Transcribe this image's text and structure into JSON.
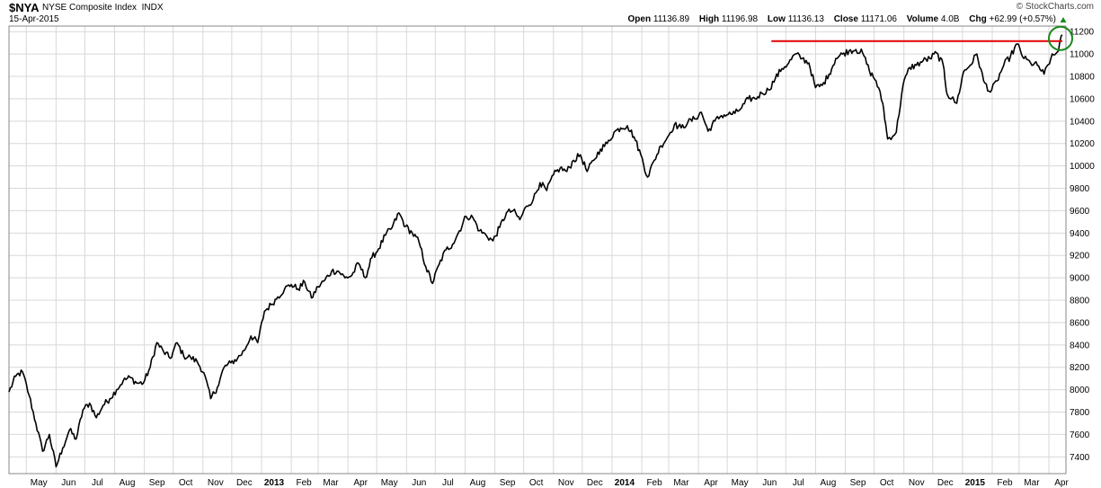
{
  "header": {
    "symbol": "$NYA",
    "description": "NYSE Composite Index",
    "exchange": "INDX",
    "date": "15-Apr-2015",
    "brand": "© StockCharts.com",
    "open_label": "Open",
    "open": "11136.89",
    "high_label": "High",
    "high": "11196.98",
    "low_label": "Low",
    "low": "11136.13",
    "close_label": "Close",
    "close": "11171.06",
    "volume_label": "Volume",
    "volume": "4.0B",
    "chg_label": "Chg",
    "chg": "+62.99 (+0.57%)"
  },
  "colors": {
    "price_line": "#000000",
    "resistance_line": "#e00000",
    "highlight_circle": "#1a8a1a",
    "up_arrow": "#1a8a1a",
    "grid": "#d8d8d8"
  },
  "chart_data": {
    "type": "line",
    "title": "$NYA NYSE Composite Index INDX",
    "xlabel": "",
    "ylabel": "",
    "ylim": [
      7250,
      11250
    ],
    "y_axis_side": "right",
    "grid": true,
    "y_ticks": [
      7400,
      7600,
      7800,
      8000,
      8200,
      8400,
      8600,
      8800,
      9000,
      9200,
      9400,
      9600,
      9800,
      10000,
      10200,
      10400,
      10600,
      10800,
      11000,
      11200
    ],
    "x_ticks": [
      {
        "label": "May",
        "date": "2012-05-01"
      },
      {
        "label": "Jun",
        "date": "2012-06-01"
      },
      {
        "label": "Jul",
        "date": "2012-07-01"
      },
      {
        "label": "Aug",
        "date": "2012-08-01"
      },
      {
        "label": "Sep",
        "date": "2012-09-01"
      },
      {
        "label": "Oct",
        "date": "2012-10-01"
      },
      {
        "label": "Nov",
        "date": "2012-11-01"
      },
      {
        "label": "Dec",
        "date": "2012-12-01"
      },
      {
        "label": "2013",
        "date": "2013-01-01",
        "bold": true
      },
      {
        "label": "Feb",
        "date": "2013-02-01"
      },
      {
        "label": "Mar",
        "date": "2013-03-01"
      },
      {
        "label": "Apr",
        "date": "2013-04-01"
      },
      {
        "label": "May",
        "date": "2013-05-01"
      },
      {
        "label": "Jun",
        "date": "2013-06-01"
      },
      {
        "label": "Jul",
        "date": "2013-07-01"
      },
      {
        "label": "Aug",
        "date": "2013-08-01"
      },
      {
        "label": "Sep",
        "date": "2013-09-01"
      },
      {
        "label": "Oct",
        "date": "2013-10-01"
      },
      {
        "label": "Nov",
        "date": "2013-11-01"
      },
      {
        "label": "Dec",
        "date": "2013-12-01"
      },
      {
        "label": "2014",
        "date": "2014-01-01",
        "bold": true
      },
      {
        "label": "Feb",
        "date": "2014-02-01"
      },
      {
        "label": "Mar",
        "date": "2014-03-01"
      },
      {
        "label": "Apr",
        "date": "2014-04-01"
      },
      {
        "label": "May",
        "date": "2014-05-01"
      },
      {
        "label": "Jun",
        "date": "2014-06-01"
      },
      {
        "label": "Jul",
        "date": "2014-07-01"
      },
      {
        "label": "Aug",
        "date": "2014-08-01"
      },
      {
        "label": "Sep",
        "date": "2014-09-01"
      },
      {
        "label": "Oct",
        "date": "2014-10-01"
      },
      {
        "label": "Nov",
        "date": "2014-11-01"
      },
      {
        "label": "Dec",
        "date": "2014-12-01"
      },
      {
        "label": "2015",
        "date": "2015-01-01",
        "bold": true
      },
      {
        "label": "Feb",
        "date": "2015-02-01"
      },
      {
        "label": "Mar",
        "date": "2015-03-01"
      },
      {
        "label": "Apr",
        "date": "2015-04-01"
      }
    ],
    "series": [
      {
        "x": [
          "2012-04-13",
          "2012-04-20",
          "2012-04-27",
          "2012-05-04",
          "2012-05-11",
          "2012-05-18",
          "2012-05-25",
          "2012-06-01",
          "2012-06-08",
          "2012-06-15",
          "2012-06-22",
          "2012-06-29",
          "2012-07-06",
          "2012-07-13",
          "2012-07-20",
          "2012-07-27",
          "2012-08-03",
          "2012-08-10",
          "2012-08-17",
          "2012-08-24",
          "2012-08-31",
          "2012-09-07",
          "2012-09-14",
          "2012-09-21",
          "2012-09-28",
          "2012-10-05",
          "2012-10-12",
          "2012-10-19",
          "2012-10-26",
          "2012-11-02",
          "2012-11-09",
          "2012-11-16",
          "2012-11-23",
          "2012-11-30",
          "2012-12-07",
          "2012-12-14",
          "2012-12-21",
          "2012-12-28",
          "2013-01-04",
          "2013-01-11",
          "2013-01-18",
          "2013-01-25",
          "2013-02-01",
          "2013-02-08",
          "2013-02-15",
          "2013-02-22",
          "2013-03-01",
          "2013-03-08",
          "2013-03-15",
          "2013-03-22",
          "2013-03-29",
          "2013-04-05",
          "2013-04-12",
          "2013-04-19",
          "2013-04-26",
          "2013-05-03",
          "2013-05-10",
          "2013-05-17",
          "2013-05-24",
          "2013-05-31",
          "2013-06-07",
          "2013-06-14",
          "2013-06-21",
          "2013-06-28",
          "2013-07-05",
          "2013-07-12",
          "2013-07-19",
          "2013-07-26",
          "2013-08-02",
          "2013-08-09",
          "2013-08-16",
          "2013-08-23",
          "2013-08-30",
          "2013-09-06",
          "2013-09-13",
          "2013-09-20",
          "2013-09-27",
          "2013-10-04",
          "2013-10-11",
          "2013-10-18",
          "2013-10-25",
          "2013-11-01",
          "2013-11-08",
          "2013-11-15",
          "2013-11-22",
          "2013-11-29",
          "2013-12-06",
          "2013-12-13",
          "2013-12-20",
          "2013-12-27",
          "2014-01-03",
          "2014-01-10",
          "2014-01-17",
          "2014-01-24",
          "2014-01-31",
          "2014-02-07",
          "2014-02-14",
          "2014-02-21",
          "2014-02-28",
          "2014-03-07",
          "2014-03-14",
          "2014-03-21",
          "2014-03-28",
          "2014-04-04",
          "2014-04-11",
          "2014-04-18",
          "2014-04-25",
          "2014-05-02",
          "2014-05-09",
          "2014-05-16",
          "2014-05-23",
          "2014-05-30",
          "2014-06-06",
          "2014-06-13",
          "2014-06-20",
          "2014-06-27",
          "2014-07-04",
          "2014-07-11",
          "2014-07-18",
          "2014-07-25",
          "2014-08-01",
          "2014-08-08",
          "2014-08-15",
          "2014-08-22",
          "2014-08-29",
          "2014-09-05",
          "2014-09-12",
          "2014-09-19",
          "2014-09-26",
          "2014-10-03",
          "2014-10-10",
          "2014-10-15",
          "2014-10-24",
          "2014-10-31",
          "2014-11-07",
          "2014-11-14",
          "2014-11-21",
          "2014-11-28",
          "2014-12-05",
          "2014-12-12",
          "2014-12-16",
          "2014-12-26",
          "2015-01-02",
          "2015-01-09",
          "2015-01-16",
          "2015-01-23",
          "2015-01-30",
          "2015-02-06",
          "2015-02-13",
          "2015-02-20",
          "2015-02-27",
          "2015-03-06",
          "2015-03-13",
          "2015-03-20",
          "2015-03-27",
          "2015-04-03",
          "2015-04-10",
          "2015-04-15"
        ],
        "values": [
          7980,
          8120,
          8160,
          7950,
          7700,
          7450,
          7600,
          7310,
          7480,
          7640,
          7560,
          7820,
          7880,
          7750,
          7860,
          7920,
          8000,
          8080,
          8110,
          8060,
          8060,
          8200,
          8420,
          8340,
          8280,
          8420,
          8300,
          8290,
          8250,
          8150,
          7920,
          8020,
          8200,
          8240,
          8280,
          8350,
          8480,
          8420,
          8700,
          8760,
          8830,
          8900,
          8940,
          8900,
          8960,
          8820,
          8920,
          8980,
          9060,
          9060,
          9000,
          9020,
          9130,
          9000,
          9180,
          9260,
          9380,
          9450,
          9580,
          9460,
          9400,
          9320,
          9100,
          8950,
          9120,
          9250,
          9300,
          9420,
          9550,
          9540,
          9420,
          9380,
          9330,
          9450,
          9580,
          9600,
          9520,
          9640,
          9700,
          9850,
          9780,
          9920,
          9980,
          9950,
          10050,
          10100,
          9950,
          10050,
          10150,
          10200,
          10300,
          10340,
          10360,
          10260,
          10100,
          9900,
          10050,
          10180,
          10260,
          10370,
          10340,
          10390,
          10420,
          10480,
          10310,
          10400,
          10450,
          10460,
          10470,
          10520,
          10600,
          10600,
          10650,
          10680,
          10780,
          10870,
          10920,
          11000,
          10960,
          10920,
          10700,
          10720,
          10820,
          10960,
          11000,
          11030,
          11040,
          11010,
          10850,
          10760,
          10560,
          10240,
          10300,
          10720,
          10880,
          10900,
          10940,
          10960,
          11010,
          10900,
          10640,
          10560,
          10840,
          10900,
          11000,
          10760,
          10660,
          10760,
          10900,
          10980,
          11090,
          10960,
          10920,
          10900,
          10820,
          10960,
          11020,
          11170
        ]
      }
    ],
    "annotations": [
      {
        "type": "horizontal_line",
        "y": 11115,
        "x_start": "2014-06-16",
        "x_end": "2015-04-15",
        "color": "#e00000",
        "description": "resistance line"
      },
      {
        "type": "circle",
        "x": "2015-04-15",
        "y": 11140,
        "color": "#1a8a1a",
        "description": "highlight at breakout"
      }
    ]
  }
}
